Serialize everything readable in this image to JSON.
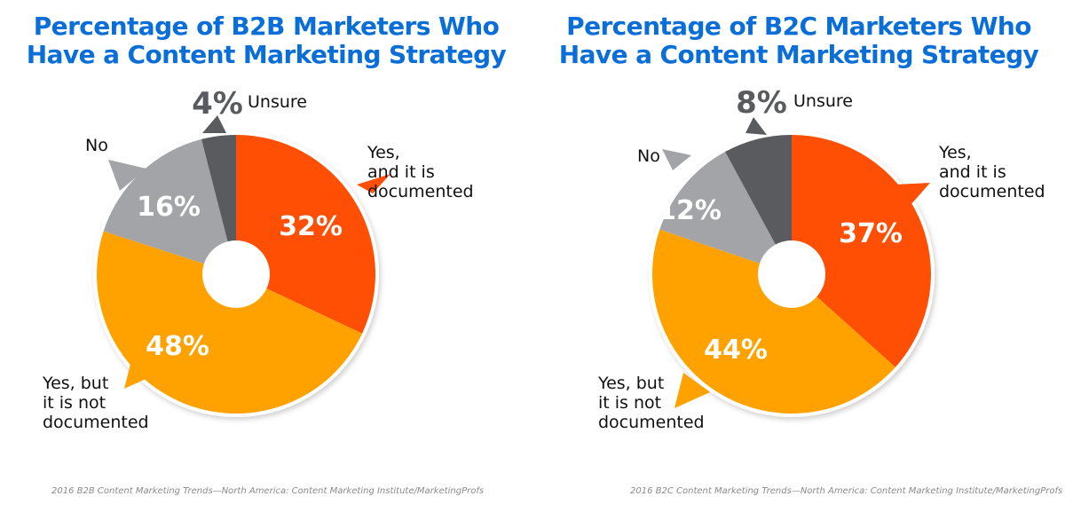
{
  "chart_data": [
    {
      "type": "pie",
      "title": "Percentage of B2B Marketers Who Have a Content Marketing Strategy",
      "title_lines": [
        "Percentage of B2B Marketers Who",
        "Have a Content Marketing Strategy"
      ],
      "source": "2016 B2B Content Marketing Trends—North America: Content Marketing Institute/MarketingProfs",
      "donut": true,
      "slices": [
        {
          "key": "documented",
          "label_lines": [
            "Yes,",
            "and it is",
            "documented"
          ],
          "value": 32,
          "value_label": "32%",
          "color": "#ff4f05"
        },
        {
          "key": "not_documented",
          "label_lines": [
            "Yes, but",
            "it is not",
            "documented"
          ],
          "value": 48,
          "value_label": "48%",
          "color": "#ffa200"
        },
        {
          "key": "no",
          "label_lines": [
            "No"
          ],
          "value": 16,
          "value_label": "16%",
          "color": "#a2a4a8"
        },
        {
          "key": "unsure",
          "label_lines": [
            "Unsure"
          ],
          "value": 4,
          "value_label": "4%",
          "color": "#5a5b5e"
        }
      ]
    },
    {
      "type": "pie",
      "title": "Percentage of B2C Marketers Who Have a Content Marketing Strategy",
      "title_lines": [
        "Percentage of B2C Marketers Who",
        "Have a Content Marketing Strategy"
      ],
      "source": "2016 B2C Content Marketing Trends—North America: Content Marketing Institute/MarketingProfs",
      "donut": true,
      "slices": [
        {
          "key": "documented",
          "label_lines": [
            "Yes,",
            "and it is",
            "documented"
          ],
          "value": 37,
          "value_label": "37%",
          "color": "#ff4f05"
        },
        {
          "key": "not_documented",
          "label_lines": [
            "Yes, but",
            "it is not",
            "documented"
          ],
          "value": 44,
          "value_label": "44%",
          "color": "#ffa200"
        },
        {
          "key": "no",
          "label_lines": [
            "No"
          ],
          "value": 12,
          "value_label": "12%",
          "color": "#a2a4a8"
        },
        {
          "key": "unsure",
          "label_lines": [
            "Unsure"
          ],
          "value": 8,
          "value_label": "8%",
          "color": "#5a5b5e"
        }
      ]
    }
  ]
}
